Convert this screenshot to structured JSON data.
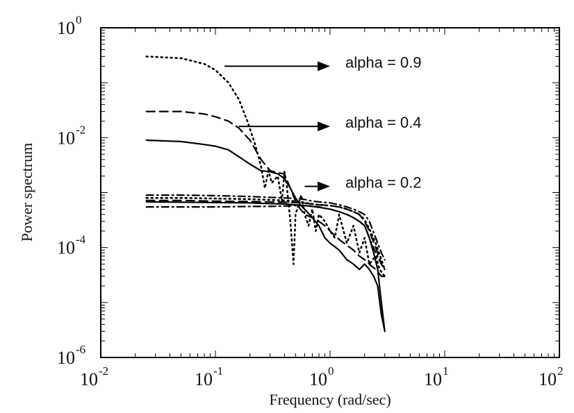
{
  "chart_data": {
    "type": "line",
    "title": "",
    "xlabel": "Frequency (rad/sec)",
    "ylabel": "Power spectrum",
    "xscale": "log",
    "yscale": "log",
    "xlim": [
      0.01,
      100
    ],
    "ylim": [
      1e-06,
      1
    ],
    "grid": false,
    "x_ticks": [
      {
        "base": "10",
        "exp": "-2",
        "value": 0.01
      },
      {
        "base": "10",
        "exp": "-1",
        "value": 0.1
      },
      {
        "base": "10",
        "exp": "0",
        "value": 1
      },
      {
        "base": "10",
        "exp": "1",
        "value": 10
      },
      {
        "base": "10",
        "exp": "2",
        "value": 100
      }
    ],
    "y_ticks": [
      {
        "base": "10",
        "exp": "-6",
        "value": 1e-06
      },
      {
        "base": "10",
        "exp": "-4",
        "value": 0.0001
      },
      {
        "base": "10",
        "exp": "-2",
        "value": 0.01
      },
      {
        "base": "10",
        "exp": "0",
        "value": 1
      }
    ],
    "annotations": [
      {
        "text": "alpha = 0.9",
        "arrow_from": [
          0.12,
          0.2
        ],
        "arrow_to": [
          1.0,
          0.2
        ]
      },
      {
        "text": "alpha = 0.4",
        "arrow_from": [
          0.16,
          0.016
        ],
        "arrow_to": [
          1.0,
          0.016
        ]
      },
      {
        "text": "alpha = 0.2",
        "arrow_from": [
          0.6,
          0.0013
        ],
        "arrow_to": [
          1.0,
          0.0013
        ]
      }
    ],
    "series": [
      {
        "style": "dotted",
        "x": [
          0.025,
          0.05,
          0.08,
          0.1,
          0.13,
          0.16,
          0.19,
          0.22,
          0.25,
          0.27,
          0.29,
          0.31,
          0.35,
          0.38,
          0.4,
          0.42,
          0.45,
          0.48,
          0.5,
          0.53,
          0.56,
          0.6,
          0.65,
          0.7,
          0.75,
          0.8,
          0.9,
          1.0,
          1.1,
          1.2,
          1.4,
          1.6,
          1.8,
          2.0,
          2.2,
          2.5,
          2.7,
          3.0
        ],
        "y": [
          0.3,
          0.28,
          0.22,
          0.17,
          0.1,
          0.05,
          0.02,
          0.008,
          0.003,
          0.0012,
          0.0025,
          0.0015,
          0.002,
          0.0007,
          0.0024,
          0.0013,
          0.0003,
          5e-05,
          0.0004,
          0.0006,
          0.0009,
          0.0004,
          0.00025,
          0.0005,
          0.0002,
          0.0004,
          0.0003,
          0.0002,
          0.00015,
          0.0004,
          0.00012,
          0.00025,
          8e-05,
          0.00015,
          5e-05,
          7e-05,
          4e-05,
          3e-05
        ]
      },
      {
        "style": "dashed",
        "x": [
          0.025,
          0.05,
          0.08,
          0.1,
          0.13,
          0.16,
          0.2,
          0.25,
          0.3,
          0.35,
          0.4,
          0.45,
          0.5,
          0.55,
          0.6,
          0.7,
          0.8,
          0.9,
          1.0,
          1.2,
          1.4,
          1.6,
          1.8,
          2.0,
          2.2,
          2.5,
          2.8,
          3.0
        ],
        "y": [
          0.03,
          0.03,
          0.027,
          0.024,
          0.02,
          0.015,
          0.009,
          0.004,
          0.0025,
          0.0023,
          0.0022,
          0.0012,
          0.0007,
          0.0005,
          0.0004,
          0.00035,
          0.0003,
          0.00025,
          0.0002,
          0.00014,
          0.00011,
          9e-05,
          7e-05,
          6e-05,
          5e-05,
          4e-05,
          3e-05,
          3e-05
        ]
      },
      {
        "style": "solid",
        "x": [
          0.025,
          0.05,
          0.08,
          0.1,
          0.13,
          0.16,
          0.2,
          0.25,
          0.3,
          0.35,
          0.4,
          0.45,
          0.5,
          0.55,
          0.6,
          0.7,
          0.8,
          0.9,
          1.0,
          1.2,
          1.4,
          1.6,
          1.8,
          2.0,
          2.2,
          2.4,
          2.6,
          2.8,
          3.0
        ],
        "y": [
          0.009,
          0.0085,
          0.0075,
          0.007,
          0.006,
          0.0045,
          0.0033,
          0.0025,
          0.0024,
          0.0022,
          0.0018,
          0.0012,
          0.0008,
          0.0006,
          0.0005,
          0.00035,
          0.00025,
          0.00015,
          0.00012,
          9e-05,
          6e-05,
          5e-05,
          4e-05,
          5e-05,
          4e-05,
          3e-05,
          2e-05,
          6e-06,
          3e-06
        ]
      },
      {
        "style": "dashdot",
        "x": [
          0.025,
          0.05,
          0.1,
          0.2,
          0.3,
          0.4,
          0.5,
          0.6,
          0.7,
          0.8,
          1.0,
          1.2,
          1.4,
          1.6,
          1.8,
          2.0,
          2.2,
          2.5,
          2.8,
          3.0
        ],
        "y": [
          0.0009,
          0.0009,
          0.00088,
          0.00085,
          0.00082,
          0.0008,
          0.00078,
          0.00075,
          0.0007,
          0.00068,
          0.00065,
          0.0006,
          0.00055,
          0.0005,
          0.00045,
          0.0004,
          0.0003,
          0.00015,
          8e-05,
          6e-05
        ]
      },
      {
        "style": "dotted",
        "x": [
          0.025,
          0.05,
          0.1,
          0.2,
          0.3,
          0.4,
          0.5,
          0.6,
          0.7,
          0.8,
          1.0,
          1.2,
          1.4,
          1.6,
          1.8,
          2.0,
          2.2,
          2.5,
          2.8,
          3.0
        ],
        "y": [
          0.0008,
          0.0008,
          0.00078,
          0.00076,
          0.00074,
          0.00072,
          0.0007,
          0.00066,
          0.00062,
          0.0006,
          0.00058,
          0.00055,
          0.0005,
          0.00045,
          0.0004,
          0.00032,
          0.00022,
          0.00012,
          6e-05,
          4e-05
        ]
      },
      {
        "style": "dashed",
        "x": [
          0.025,
          0.05,
          0.1,
          0.2,
          0.3,
          0.4,
          0.5,
          0.6,
          0.7,
          0.8,
          1.0,
          1.2,
          1.4,
          1.6,
          1.8,
          2.0,
          2.2,
          2.5,
          2.8,
          3.0
        ],
        "y": [
          0.00072,
          0.00072,
          0.0007,
          0.00069,
          0.00068,
          0.00067,
          0.00066,
          0.00064,
          0.00062,
          0.0006,
          0.00058,
          0.00055,
          0.0005,
          0.00045,
          0.0004,
          0.0003,
          0.0002,
          0.0001,
          5e-05,
          4e-05
        ]
      },
      {
        "style": "solid",
        "x": [
          0.025,
          0.05,
          0.1,
          0.2,
          0.3,
          0.4,
          0.5,
          0.6,
          0.7,
          0.8,
          1.0,
          1.2,
          1.4,
          1.6,
          1.8,
          2.0,
          2.2,
          2.4,
          2.6,
          2.8,
          3.0
        ],
        "y": [
          0.00068,
          0.00067,
          0.00066,
          0.00065,
          0.00063,
          0.00062,
          0.0006,
          0.00058,
          0.00056,
          0.00054,
          0.0005,
          0.00045,
          0.0004,
          0.00035,
          0.0003,
          0.00025,
          0.00015,
          8e-05,
          4e-05,
          1e-05,
          3e-06
        ]
      },
      {
        "style": "dashdot",
        "x": [
          0.025,
          0.05,
          0.1,
          0.2,
          0.3,
          0.4,
          0.5,
          0.6,
          0.7,
          0.8,
          1.0,
          1.2,
          1.4,
          1.6,
          1.8,
          2.0,
          2.2,
          2.5,
          2.8,
          3.0
        ],
        "y": [
          0.00055,
          0.00055,
          0.00055,
          0.00056,
          0.00056,
          0.00057,
          0.00058,
          0.00058,
          0.00057,
          0.00055,
          0.0005,
          0.00045,
          0.0004,
          0.00035,
          0.0003,
          0.00025,
          0.00015,
          8e-05,
          5e-05,
          4e-05
        ]
      }
    ]
  }
}
